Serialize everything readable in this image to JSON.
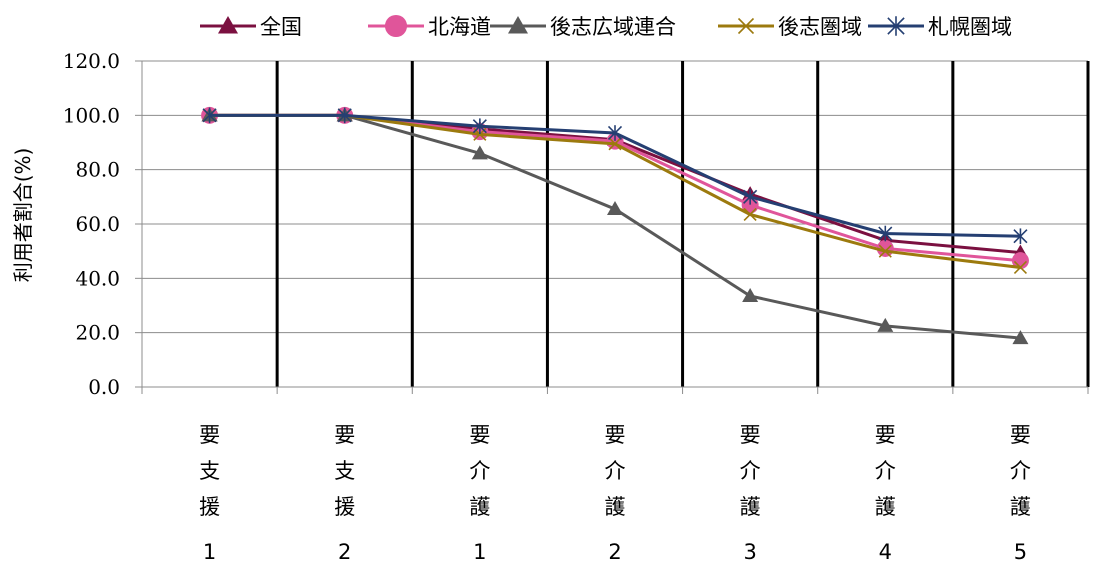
{
  "chart_data": {
    "type": "line",
    "title": "",
    "ylabel": "利用者割合(%)",
    "xlabel": "",
    "ylim": [
      0,
      120
    ],
    "yticks": [
      0,
      20,
      40,
      60,
      80,
      100,
      120
    ],
    "ytick_labels": [
      "0.0",
      "20.0",
      "40.0",
      "60.0",
      "80.0",
      "100.0",
      "120.0"
    ],
    "categories": [
      {
        "chars": [
          "要",
          "支",
          "援"
        ],
        "num": "1"
      },
      {
        "chars": [
          "要",
          "支",
          "援"
        ],
        "num": "2"
      },
      {
        "chars": [
          "要",
          "介",
          "護"
        ],
        "num": "1"
      },
      {
        "chars": [
          "要",
          "介",
          "護"
        ],
        "num": "2"
      },
      {
        "chars": [
          "要",
          "介",
          "護"
        ],
        "num": "3"
      },
      {
        "chars": [
          "要",
          "介",
          "護"
        ],
        "num": "4"
      },
      {
        "chars": [
          "要",
          "介",
          "護"
        ],
        "num": "5"
      }
    ],
    "legend_position": "top-right",
    "grid": "horizontal",
    "series": [
      {
        "name": "全国",
        "color": "#7b1040",
        "marker": "triangle",
        "values": [
          100,
          100,
          95,
          91,
          71,
          54,
          49.5
        ]
      },
      {
        "name": "北海道",
        "color": "#e0559a",
        "marker": "circle",
        "values": [
          100,
          100,
          94,
          90.5,
          67,
          51,
          46.5
        ]
      },
      {
        "name": "後志広域連合",
        "color": "#595959",
        "marker": "triangle",
        "values": [
          100,
          100,
          86,
          65.5,
          33.5,
          22.5,
          18
        ]
      },
      {
        "name": "後志圏域",
        "color": "#9c7a0e",
        "marker": "x",
        "values": [
          100,
          100,
          93,
          89.5,
          63.5,
          50,
          44
        ]
      },
      {
        "name": "札幌圏域",
        "color": "#253f72",
        "marker": "star",
        "values": [
          100,
          100,
          96,
          93.5,
          70,
          56.5,
          55.5
        ]
      }
    ]
  }
}
